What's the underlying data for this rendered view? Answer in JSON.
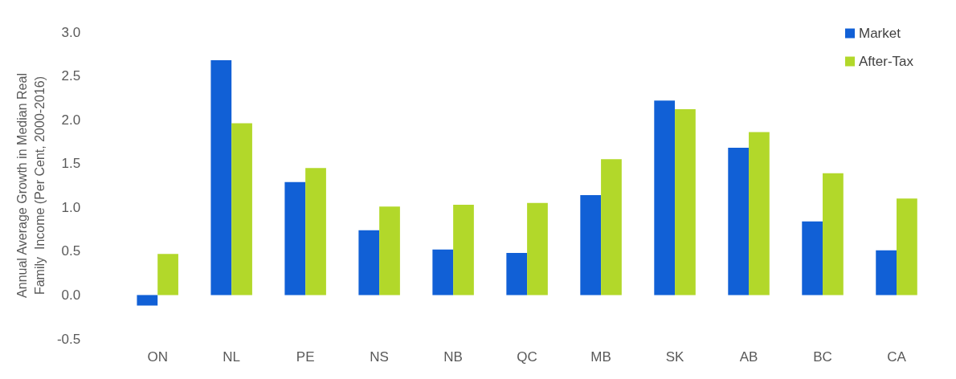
{
  "chart_data": {
    "type": "bar",
    "ylabel": "Annual Average Growth in Median Real\nFamily  Income (Per Cent, 2000-2016)",
    "categories": [
      "ON",
      "NL",
      "PE",
      "NS",
      "NB",
      "QC",
      "MB",
      "SK",
      "AB",
      "BC",
      "CA"
    ],
    "series": [
      {
        "name": "Market",
        "color": "#1160d6",
        "values": [
          -0.12,
          2.68,
          1.29,
          0.74,
          0.52,
          0.48,
          1.14,
          2.22,
          1.68,
          0.84,
          0.51
        ]
      },
      {
        "name": "After-Tax",
        "color": "#b2d82a",
        "values": [
          0.47,
          1.96,
          1.45,
          1.01,
          1.03,
          1.05,
          1.55,
          2.12,
          1.86,
          1.39,
          1.1
        ]
      }
    ],
    "ylim": [
      -0.5,
      3.0
    ],
    "yticks": [
      {
        "value": -0.5,
        "label": "-0.5"
      },
      {
        "value": 0,
        "label": "0.0"
      },
      {
        "value": 0.5,
        "label": "0.5"
      },
      {
        "value": 1,
        "label": "1.0"
      },
      {
        "value": 1.5,
        "label": "1.5"
      },
      {
        "value": 2,
        "label": "2.0"
      },
      {
        "value": 2.5,
        "label": "2.5"
      },
      {
        "value": 3,
        "label": "3.0"
      }
    ],
    "grid": false,
    "legend": "top right"
  }
}
